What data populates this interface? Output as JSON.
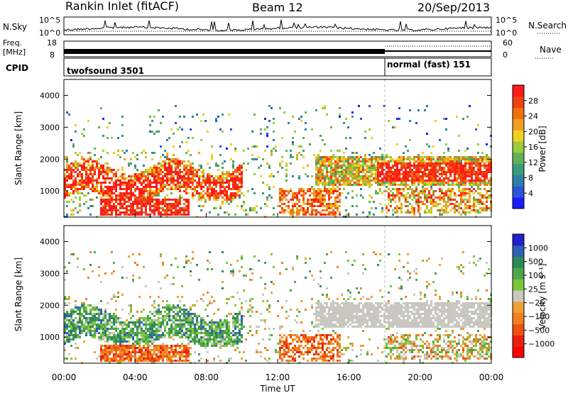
{
  "header": {
    "title": "Rankin Inlet (fitACF)",
    "beam": "Beam 12",
    "date": "20/Sep/2013"
  },
  "nsky_panel": {
    "left_label": "N.Sky",
    "tick_top": "10^5",
    "tick_bottom": "10^0",
    "right_tick_top": "10^5",
    "right_tick_bottom": "10^0",
    "right_label": "N.Search"
  },
  "freq_panel": {
    "left_label_1": "Freq.",
    "left_label_2": "[MHz]",
    "tick_top": "18",
    "tick_bottom": "8",
    "right_tick_top": "60",
    "right_tick_bottom": "0",
    "right_label": "Nave"
  },
  "cpid_panel": {
    "label": "CPID",
    "mode_1": "twofsound 3501",
    "mode_2": "normal (fast) 151",
    "switch_time_hours": 18
  },
  "colors": {
    "power_scale": [
      "#1a1aff",
      "#2a55d6",
      "#2e7ea8",
      "#3b9a78",
      "#5fb255",
      "#9ccc3c",
      "#f0d020",
      "#f0a020",
      "#f07010",
      "#f04010",
      "#ff1a1a"
    ],
    "velocity_scale": [
      "#2020c8",
      "#2e60b8",
      "#2f8a58",
      "#4ea648",
      "#7cc63a",
      "#c8c8c0",
      "#f0a030",
      "#f08020",
      "#f05010",
      "#e82010",
      "#ff0000"
    ]
  },
  "chart_data": [
    {
      "type": "heatmap",
      "name": "power",
      "ylabel": "Slant Range [km]",
      "ylim": [
        180,
        4500
      ],
      "yticks": [
        1000,
        2000,
        3000,
        4000
      ],
      "xlim": [
        0,
        24
      ],
      "colorbar_label": "Power [dB]",
      "colorbar_ticks": [
        "4",
        "8",
        "12",
        "16",
        "20",
        "24",
        "28"
      ],
      "colorbar_range": [
        0,
        30
      ]
    },
    {
      "type": "heatmap",
      "name": "velocity",
      "ylabel": "Slant Range [km]",
      "ylim": [
        180,
        4500
      ],
      "yticks": [
        1000,
        2000,
        3000,
        4000
      ],
      "xlim": [
        0,
        24
      ],
      "xticks": [
        "00:00",
        "04:00",
        "08:00",
        "12:00",
        "16:00",
        "20:00",
        "00:00"
      ],
      "xlabel": "Time UT",
      "colorbar_label": "Velocity [m s⁻¹]",
      "colorbar_ticks": [
        "1000",
        "500",
        "100",
        "25",
        "−25",
        "−100",
        "−500",
        "−1000"
      ]
    }
  ]
}
